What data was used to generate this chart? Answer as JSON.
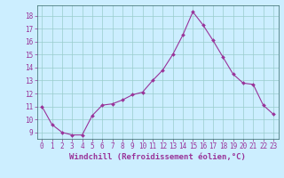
{
  "hours": [
    0,
    1,
    2,
    3,
    4,
    5,
    6,
    7,
    8,
    9,
    10,
    11,
    12,
    13,
    14,
    15,
    16,
    17,
    18,
    19,
    20,
    21,
    22,
    23
  ],
  "values": [
    11.0,
    9.6,
    9.0,
    8.8,
    8.8,
    10.3,
    11.1,
    11.2,
    11.5,
    11.9,
    12.1,
    13.0,
    13.8,
    15.0,
    16.5,
    18.3,
    17.3,
    16.1,
    14.8,
    13.5,
    12.8,
    12.7,
    11.1,
    10.4
  ],
  "line_color": "#993399",
  "marker": "D",
  "marker_size": 2.0,
  "background_color": "#cceeff",
  "grid_color": "#99cccc",
  "xlabel": "Windchill (Refroidissement éolien,°C)",
  "xlabel_color": "#993399",
  "tick_color": "#993399",
  "axis_color": "#336666",
  "ylim": [
    8.5,
    18.8
  ],
  "xlim": [
    -0.5,
    23.5
  ],
  "yticks": [
    9,
    10,
    11,
    12,
    13,
    14,
    15,
    16,
    17,
    18
  ],
  "xticks": [
    0,
    1,
    2,
    3,
    4,
    5,
    6,
    7,
    8,
    9,
    10,
    11,
    12,
    13,
    14,
    15,
    16,
    17,
    18,
    19,
    20,
    21,
    22,
    23
  ],
  "tick_fontsize": 5.5,
  "xlabel_fontsize": 6.5
}
